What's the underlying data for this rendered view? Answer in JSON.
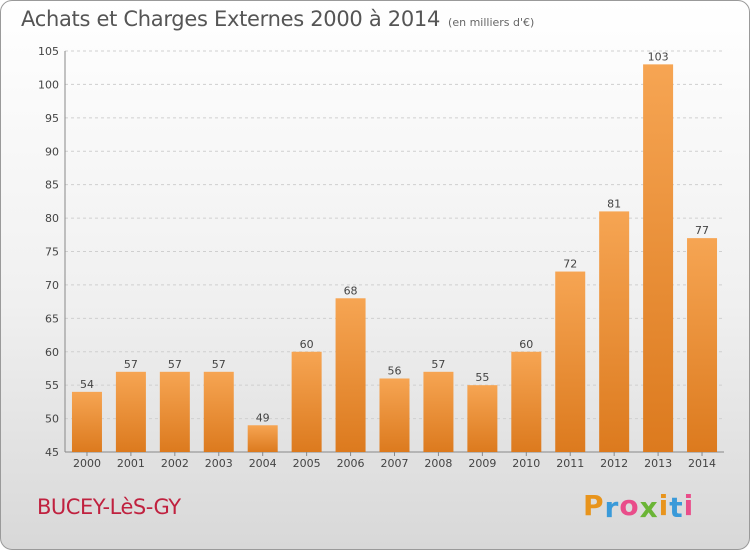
{
  "header": {
    "title": "Achats et Charges Externes 2000 à 2014",
    "subtitle": "(en milliers d'€)"
  },
  "footer": {
    "town": "BUCEY-LèS-GY",
    "logo_letters": [
      "P",
      "r",
      "o",
      "x",
      "i",
      "t",
      "i"
    ],
    "logo_colors": [
      "#e8941c",
      "#3a9ad9",
      "#e94d8a",
      "#6bb536",
      "#e8941c",
      "#3a9ad9",
      "#e94d8a"
    ]
  },
  "colors": {
    "bar_light": "#f6a553",
    "bar_dark": "#dc7a1e",
    "grid": "#cfcfcf",
    "axis_text": "#444444"
  },
  "chart_data": {
    "type": "bar",
    "title": "Achats et Charges Externes 2000 à 2014",
    "subtitle": "(en milliers d'€)",
    "categories": [
      "2000",
      "2001",
      "2002",
      "2003",
      "2004",
      "2005",
      "2006",
      "2007",
      "2008",
      "2009",
      "2010",
      "2011",
      "2012",
      "2013",
      "2014"
    ],
    "values": [
      54,
      57,
      57,
      57,
      49,
      60,
      68,
      56,
      57,
      55,
      60,
      72,
      81,
      103,
      77
    ],
    "ylim": [
      45,
      105
    ],
    "yticks": [
      45,
      50,
      55,
      60,
      65,
      70,
      75,
      80,
      85,
      90,
      95,
      100,
      105
    ],
    "grid": true,
    "xlabel": "",
    "ylabel": ""
  }
}
